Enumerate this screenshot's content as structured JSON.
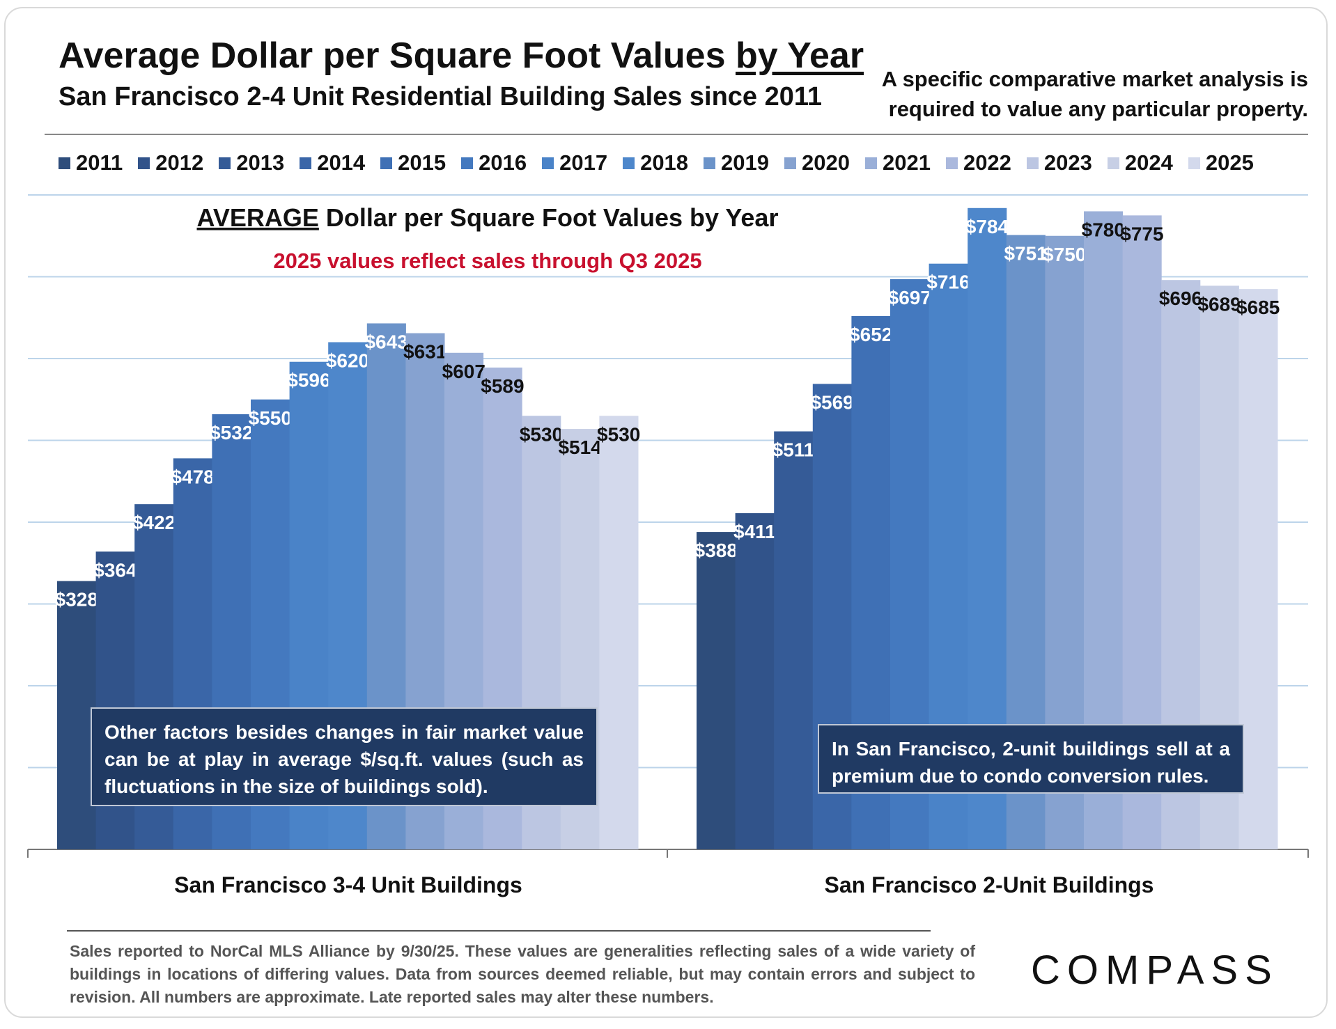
{
  "header": {
    "title_main": "Average Dollar per Square Foot Values",
    "title_underlined": "by Year",
    "subtitle": "San Francisco 2-4 Unit Residential Building Sales since 2011",
    "disclaimer": "A specific comparative market analysis is required to value any particular property."
  },
  "legend": {
    "items": [
      "2011",
      "2012",
      "2013",
      "2014",
      "2015",
      "2016",
      "2017",
      "2018",
      "2019",
      "2020",
      "2021",
      "2022",
      "2023",
      "2024",
      "2025"
    ]
  },
  "colors": {
    "2011": "#2e4d7b",
    "2012": "#31538a",
    "2013": "#355b97",
    "2014": "#3a66a8",
    "2015": "#3f70b5",
    "2016": "#4479bf",
    "2017": "#4a83c8",
    "2018": "#4e87cb",
    "2019": "#6b93c9",
    "2020": "#86a2d0",
    "2021": "#9aafd8",
    "2022": "#aab8dd",
    "2023": "#bcc6e2",
    "2024": "#c7cfe5",
    "2025": "#d3d9ec"
  },
  "chart_inner": {
    "title_underlined": "AVERAGE",
    "title_rest": "Dollar per Square Foot Values by Year",
    "note": "2025 values reflect sales through Q3 2025"
  },
  "annotations": {
    "left": "Other factors besides changes in fair market value can be at play in average $/sq.ft. values (such as fluctuations in the size of buildings sold).",
    "right": "In San Francisco, 2-unit buildings sell at a premium due to condo conversion rules."
  },
  "chart_data": {
    "type": "bar",
    "title": "AVERAGE Dollar per Square Foot Values by Year",
    "categories": [
      "San Francisco 3-4 Unit Buildings",
      "San Francisco 2-Unit Buildings"
    ],
    "ylim": [
      0,
      800
    ],
    "grid": true,
    "legend_position": "top",
    "series": [
      {
        "name": "2011",
        "values": [
          328,
          388
        ],
        "labels": [
          "$328",
          "$388"
        ]
      },
      {
        "name": "2012",
        "values": [
          364,
          411
        ],
        "labels": [
          "$364",
          "$411"
        ]
      },
      {
        "name": "2013",
        "values": [
          422,
          511
        ],
        "labels": [
          "$422",
          "$511"
        ]
      },
      {
        "name": "2014",
        "values": [
          478,
          569
        ],
        "labels": [
          "$478",
          "$569"
        ]
      },
      {
        "name": "2015",
        "values": [
          532,
          652
        ],
        "labels": [
          "$532",
          "$652"
        ]
      },
      {
        "name": "2016",
        "values": [
          550,
          697
        ],
        "labels": [
          "$550",
          "$697"
        ]
      },
      {
        "name": "2017",
        "values": [
          596,
          716
        ],
        "labels": [
          "$596",
          "$716"
        ]
      },
      {
        "name": "2018",
        "values": [
          620,
          784
        ],
        "labels": [
          "$620",
          "$784"
        ]
      },
      {
        "name": "2019",
        "values": [
          643,
          751
        ],
        "labels": [
          "$643",
          "$751"
        ]
      },
      {
        "name": "2020",
        "values": [
          631,
          750
        ],
        "labels": [
          "$631",
          "$750"
        ]
      },
      {
        "name": "2021",
        "values": [
          607,
          780
        ],
        "labels": [
          "$607",
          "$780"
        ]
      },
      {
        "name": "2022",
        "values": [
          589,
          775
        ],
        "labels": [
          "$589",
          "$775"
        ]
      },
      {
        "name": "2023",
        "values": [
          530,
          696
        ],
        "labels": [
          "$530",
          "$696"
        ]
      },
      {
        "name": "2024",
        "values": [
          514,
          689
        ],
        "labels": [
          "$514",
          "$689"
        ]
      },
      {
        "name": "2025",
        "values": [
          530,
          685
        ],
        "labels": [
          "$530",
          "$685"
        ]
      }
    ]
  },
  "footer": {
    "note": "Sales reported to NorCal MLS Alliance by 9/30/25. These values are generalities reflecting sales of a wide variety of buildings in locations of differing values. Data from sources deemed reliable, but may contain errors and subject to revision. All numbers are approximate. Late reported sales may alter these numbers.",
    "logo": "COMPASS"
  }
}
